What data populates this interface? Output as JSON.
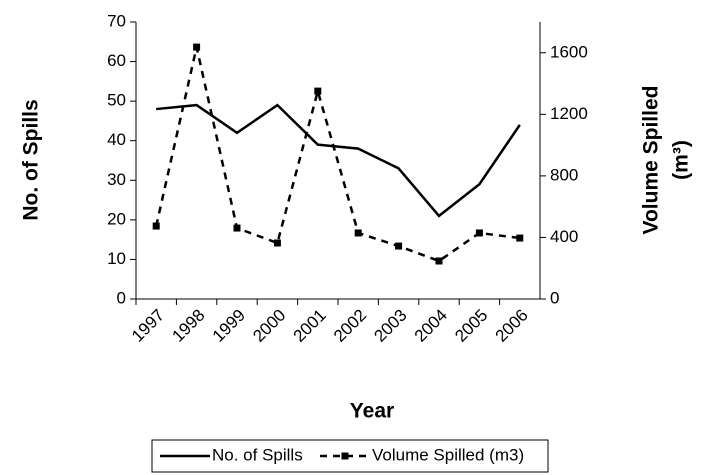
{
  "chart_data": {
    "type": "line",
    "xlabel": "Year",
    "ylabel": "No. of Spills",
    "y2label": [
      "Volume Spilled",
      "(m³)"
    ],
    "categories": [
      "1997",
      "1998",
      "1999",
      "2000",
      "2001",
      "2002",
      "2003",
      "2004",
      "2005",
      "2006"
    ],
    "series": [
      {
        "name": "No. of Spills",
        "color": "#000000",
        "values": [
          48,
          49,
          42,
          49,
          39,
          38,
          33,
          21,
          29,
          44
        ]
      },
      {
        "name": "Volume Spilled (m3)",
        "color": "#000000",
        "axis": "y2",
        "dashed": true,
        "marker": "square",
        "values": [
          474,
          1637,
          461,
          364,
          1351,
          429,
          344,
          247,
          429,
          396
        ]
      }
    ],
    "ylim": [
      0,
      70
    ],
    "yticks": [
      0,
      10,
      20,
      30,
      40,
      50,
      60,
      70
    ],
    "y2lim": [
      0,
      1800
    ],
    "y2ticks": [
      0,
      400,
      800,
      1200,
      1600
    ],
    "legend": "bottom"
  }
}
